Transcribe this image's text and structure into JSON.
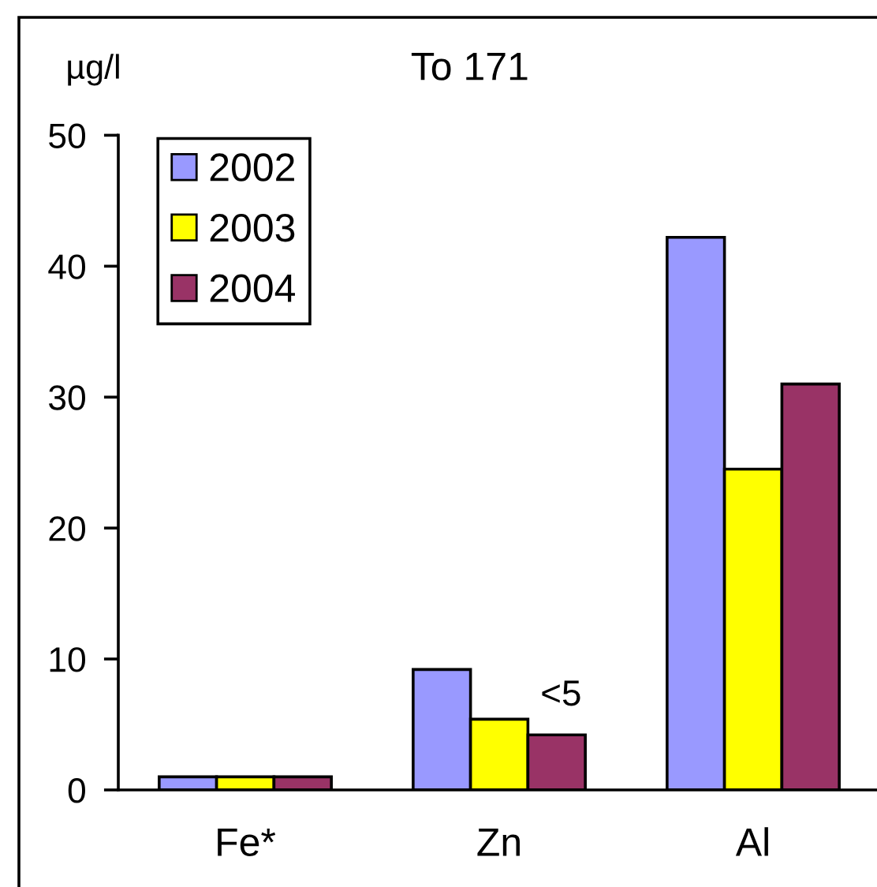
{
  "chart_data": {
    "type": "bar",
    "title": "To 171",
    "ylabel": "µg/l",
    "categories": [
      "Fe*",
      "Zn",
      "Al"
    ],
    "series": [
      {
        "name": "2002",
        "color": "#9999ff",
        "values": [
          1,
          9.2,
          42.2
        ]
      },
      {
        "name": "2003",
        "color": "#ffff00",
        "values": [
          1,
          5.4,
          24.5
        ]
      },
      {
        "name": "2004",
        "color": "#993366",
        "values": [
          1,
          4.2,
          31.0
        ],
        "value_labels": [
          null,
          "<5",
          null
        ]
      }
    ],
    "ylim": [
      0,
      50
    ],
    "yticks": [
      0,
      10,
      20,
      30,
      40,
      50
    ],
    "legend": "top left"
  }
}
